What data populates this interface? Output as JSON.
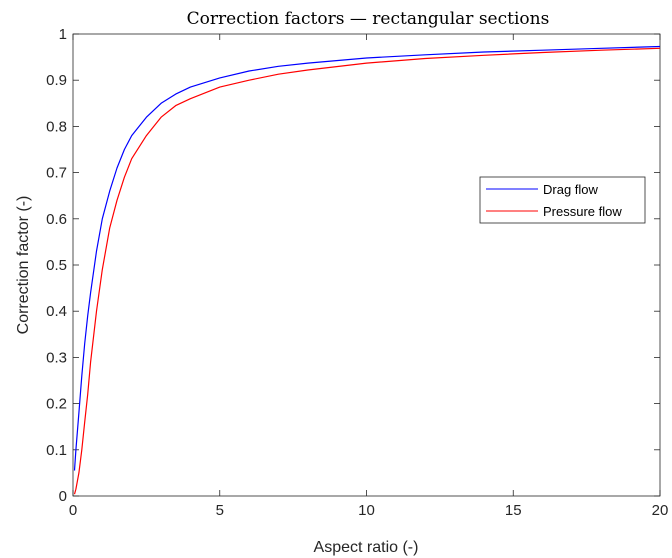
{
  "chart_data": {
    "type": "line",
    "title": "Correction factors — rectangular sections",
    "xlabel": "Aspect ratio (-)",
    "ylabel": "Correction factor (-)",
    "xlim": [
      0,
      20
    ],
    "ylim": [
      0,
      1
    ],
    "xticks": [
      0,
      5,
      10,
      15,
      20
    ],
    "xtick_labels": [
      "0",
      "5",
      "10",
      "15",
      "20"
    ],
    "yticks": [
      0,
      0.1,
      0.2,
      0.3,
      0.4,
      0.5,
      0.6,
      0.7,
      0.8,
      0.9,
      1
    ],
    "ytick_labels": [
      "0",
      "0.1",
      "0.2",
      "0.3",
      "0.4",
      "0.5",
      "0.6",
      "0.7",
      "0.8",
      "0.9",
      "1"
    ],
    "grid": false,
    "legend_position": "right",
    "series": [
      {
        "name": "Drag flow",
        "color": "#0000ff",
        "x": [
          0.05,
          0.1,
          0.2,
          0.3,
          0.4,
          0.5,
          0.6,
          0.8,
          1.0,
          1.25,
          1.5,
          1.75,
          2.0,
          2.5,
          3.0,
          3.5,
          4.0,
          5.0,
          6.0,
          7.0,
          8.0,
          10.0,
          12.0,
          14.0,
          16.0,
          18.0,
          20.0
        ],
        "y": [
          0.055,
          0.1,
          0.18,
          0.26,
          0.33,
          0.39,
          0.44,
          0.53,
          0.6,
          0.66,
          0.71,
          0.75,
          0.78,
          0.82,
          0.85,
          0.87,
          0.885,
          0.905,
          0.92,
          0.93,
          0.937,
          0.948,
          0.955,
          0.961,
          0.965,
          0.969,
          0.973
        ]
      },
      {
        "name": "Pressure flow",
        "color": "#ff0000",
        "x": [
          0.05,
          0.1,
          0.2,
          0.3,
          0.4,
          0.5,
          0.6,
          0.8,
          1.0,
          1.25,
          1.5,
          1.75,
          2.0,
          2.5,
          3.0,
          3.5,
          4.0,
          5.0,
          6.0,
          7.0,
          8.0,
          10.0,
          12.0,
          14.0,
          16.0,
          18.0,
          20.0
        ],
        "y": [
          0.004,
          0.015,
          0.05,
          0.1,
          0.16,
          0.22,
          0.29,
          0.4,
          0.49,
          0.58,
          0.64,
          0.69,
          0.73,
          0.78,
          0.82,
          0.845,
          0.86,
          0.885,
          0.9,
          0.913,
          0.922,
          0.937,
          0.947,
          0.954,
          0.96,
          0.965,
          0.969
        ]
      }
    ]
  }
}
